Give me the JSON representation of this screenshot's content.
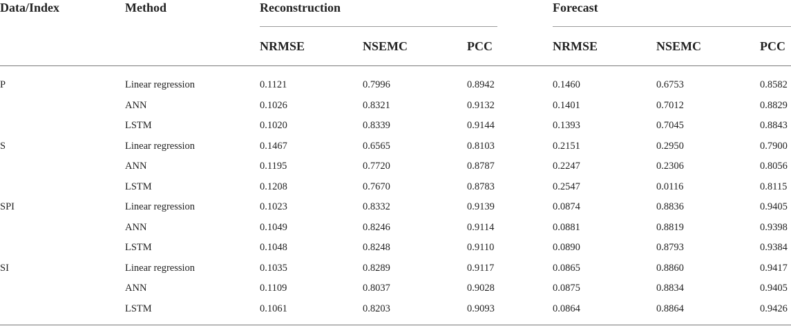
{
  "table": {
    "headers": {
      "data_index": "Data/Index",
      "method": "Method",
      "reconstruction": "Reconstruction",
      "forecast": "Forecast",
      "metrics": [
        "NRMSE",
        "NSEMC",
        "PCC"
      ]
    },
    "groups": [
      {
        "label": "P",
        "rows": [
          {
            "method": "Linear regression",
            "values": [
              "0.1121",
              "0.7996",
              "0.8942",
              "0.1460",
              "0.6753",
              "0.8582"
            ]
          },
          {
            "method": "ANN",
            "values": [
              "0.1026",
              "0.8321",
              "0.9132",
              "0.1401",
              "0.7012",
              "0.8829"
            ]
          },
          {
            "method": "LSTM",
            "values": [
              "0.1020",
              "0.8339",
              "0.9144",
              "0.1393",
              "0.7045",
              "0.8843"
            ]
          }
        ]
      },
      {
        "label": "S",
        "rows": [
          {
            "method": "Linear regression",
            "values": [
              "0.1467",
              "0.6565",
              "0.8103",
              "0.2151",
              "0.2950",
              "0.7900"
            ]
          },
          {
            "method": "ANN",
            "values": [
              "0.1195",
              "0.7720",
              "0.8787",
              "0.2247",
              "0.2306",
              "0.8056"
            ]
          },
          {
            "method": "LSTM",
            "values": [
              "0.1208",
              "0.7670",
              "0.8783",
              "0.2547",
              "0.0116",
              "0.8115"
            ]
          }
        ]
      },
      {
        "label": "SPI",
        "rows": [
          {
            "method": "Linear regression",
            "values": [
              "0.1023",
              "0.8332",
              "0.9139",
              "0.0874",
              "0.8836",
              "0.9405"
            ]
          },
          {
            "method": "ANN",
            "values": [
              "0.1049",
              "0.8246",
              "0.9114",
              "0.0881",
              "0.8819",
              "0.9398"
            ]
          },
          {
            "method": "LSTM",
            "values": [
              "0.1048",
              "0.8248",
              "0.9110",
              "0.0890",
              "0.8793",
              "0.9384"
            ]
          }
        ]
      },
      {
        "label": "SI",
        "rows": [
          {
            "method": "Linear regression",
            "values": [
              "0.1035",
              "0.8289",
              "0.9117",
              "0.0865",
              "0.8860",
              "0.9417"
            ]
          },
          {
            "method": "ANN",
            "values": [
              "0.1109",
              "0.8037",
              "0.9028",
              "0.0875",
              "0.8834",
              "0.9405"
            ]
          },
          {
            "method": "LSTM",
            "values": [
              "0.1061",
              "0.8203",
              "0.9093",
              "0.0864",
              "0.8864",
              "0.9426"
            ]
          }
        ]
      }
    ]
  }
}
